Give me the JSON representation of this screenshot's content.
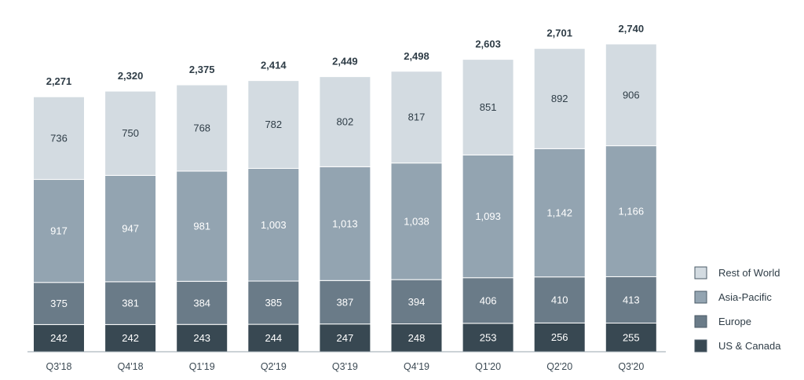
{
  "chart_data": {
    "type": "bar",
    "stacked": true,
    "categories": [
      "Q3'18",
      "Q4'18",
      "Q1'19",
      "Q2'19",
      "Q3'19",
      "Q4'19",
      "Q1'20",
      "Q2'20",
      "Q3'20"
    ],
    "series": [
      {
        "name": "US & Canada",
        "color": "#384852",
        "label_color": "#ffffff",
        "values": [
          242,
          242,
          243,
          244,
          247,
          248,
          253,
          256,
          255
        ],
        "labels": [
          "242",
          "242",
          "243",
          "244",
          "247",
          "248",
          "253",
          "256",
          "255"
        ]
      },
      {
        "name": "Europe",
        "color": "#6a7b88",
        "label_color": "#ffffff",
        "values": [
          375,
          381,
          384,
          385,
          387,
          394,
          406,
          410,
          413
        ],
        "labels": [
          "375",
          "381",
          "384",
          "385",
          "387",
          "394",
          "406",
          "410",
          "413"
        ]
      },
      {
        "name": "Asia-Pacific",
        "color": "#93a4b1",
        "label_color": "#ffffff",
        "values": [
          917,
          947,
          981,
          1003,
          1013,
          1038,
          1093,
          1142,
          1166
        ],
        "labels": [
          "917",
          "947",
          "981",
          "1,003",
          "1,013",
          "1,038",
          "1,093",
          "1,142",
          "1,166"
        ]
      },
      {
        "name": "Rest of World",
        "color": "#d3dbe1",
        "label_color": "#2f3d47",
        "values": [
          736,
          750,
          768,
          782,
          802,
          817,
          851,
          892,
          906
        ],
        "labels": [
          "736",
          "750",
          "768",
          "782",
          "802",
          "817",
          "851",
          "892",
          "906"
        ]
      }
    ],
    "totals": [
      2271,
      2320,
      2375,
      2414,
      2449,
      2498,
      2603,
      2701,
      2740
    ],
    "total_labels": [
      "2,271",
      "2,320",
      "2,375",
      "2,414",
      "2,449",
      "2,498",
      "2,603",
      "2,701",
      "2,740"
    ],
    "legend_order": [
      "Rest of World",
      "Asia-Pacific",
      "Europe",
      "US & Canada"
    ],
    "legend_position": "right",
    "grid": false,
    "ylim": [
      0,
      2740
    ]
  }
}
